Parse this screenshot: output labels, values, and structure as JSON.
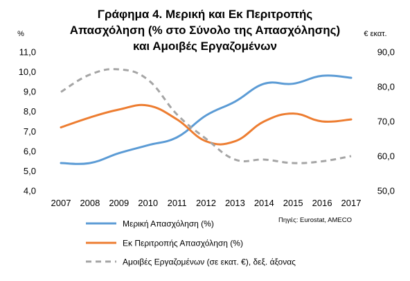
{
  "chart_data": {
    "type": "line",
    "title": [
      "Γράφημα 4. Μερική και Εκ Περιτροπής",
      "Απασχόληση (% στο Σύνολο της Απασχόλησης)",
      "και Αμοιβές Εργαζομένων"
    ],
    "left_axis_unit": "%",
    "right_axis_unit": "€ εκατ.",
    "categories": [
      "2007",
      "2008",
      "2009",
      "2010",
      "2011",
      "2012",
      "2013",
      "2014",
      "2015",
      "2016",
      "2017"
    ],
    "left_ylim": [
      4.0,
      11.0
    ],
    "left_ticks": [
      "4,0",
      "5,0",
      "6,0",
      "7,0",
      "8,0",
      "9,0",
      "10,0",
      "11,0"
    ],
    "right_ylim": [
      50.0,
      90.0
    ],
    "right_ticks": [
      "50,0",
      "60,0",
      "70,0",
      "80,0",
      "90,0"
    ],
    "series": [
      {
        "name": "Μερική Απασχόληση (%)",
        "axis": "left",
        "color": "#5b9bd5",
        "dash": "solid",
        "values": [
          5.4,
          5.4,
          5.9,
          6.3,
          6.7,
          7.8,
          8.5,
          9.4,
          9.4,
          9.8,
          9.7
        ]
      },
      {
        "name": "Εκ Περιτροπής Απασχόληση (%)",
        "axis": "left",
        "color": "#ed7d31",
        "dash": "solid",
        "values": [
          7.2,
          7.7,
          8.1,
          8.3,
          7.6,
          6.5,
          6.5,
          7.5,
          7.9,
          7.5,
          7.6
        ]
      },
      {
        "name": "Αμοιβές Εργαζομένων (σε εκατ. €), δεξ. άξονας",
        "axis": "right",
        "color": "#a5a5a5",
        "dash": "dashed",
        "values": [
          78.5,
          83.5,
          85.0,
          82.0,
          72.0,
          65.0,
          59.0,
          59.0,
          58.0,
          58.5,
          60.0
        ]
      }
    ],
    "grid": false,
    "legend_position": "bottom-left",
    "source_note": "Πηγές: Eurostat, AMECO"
  }
}
